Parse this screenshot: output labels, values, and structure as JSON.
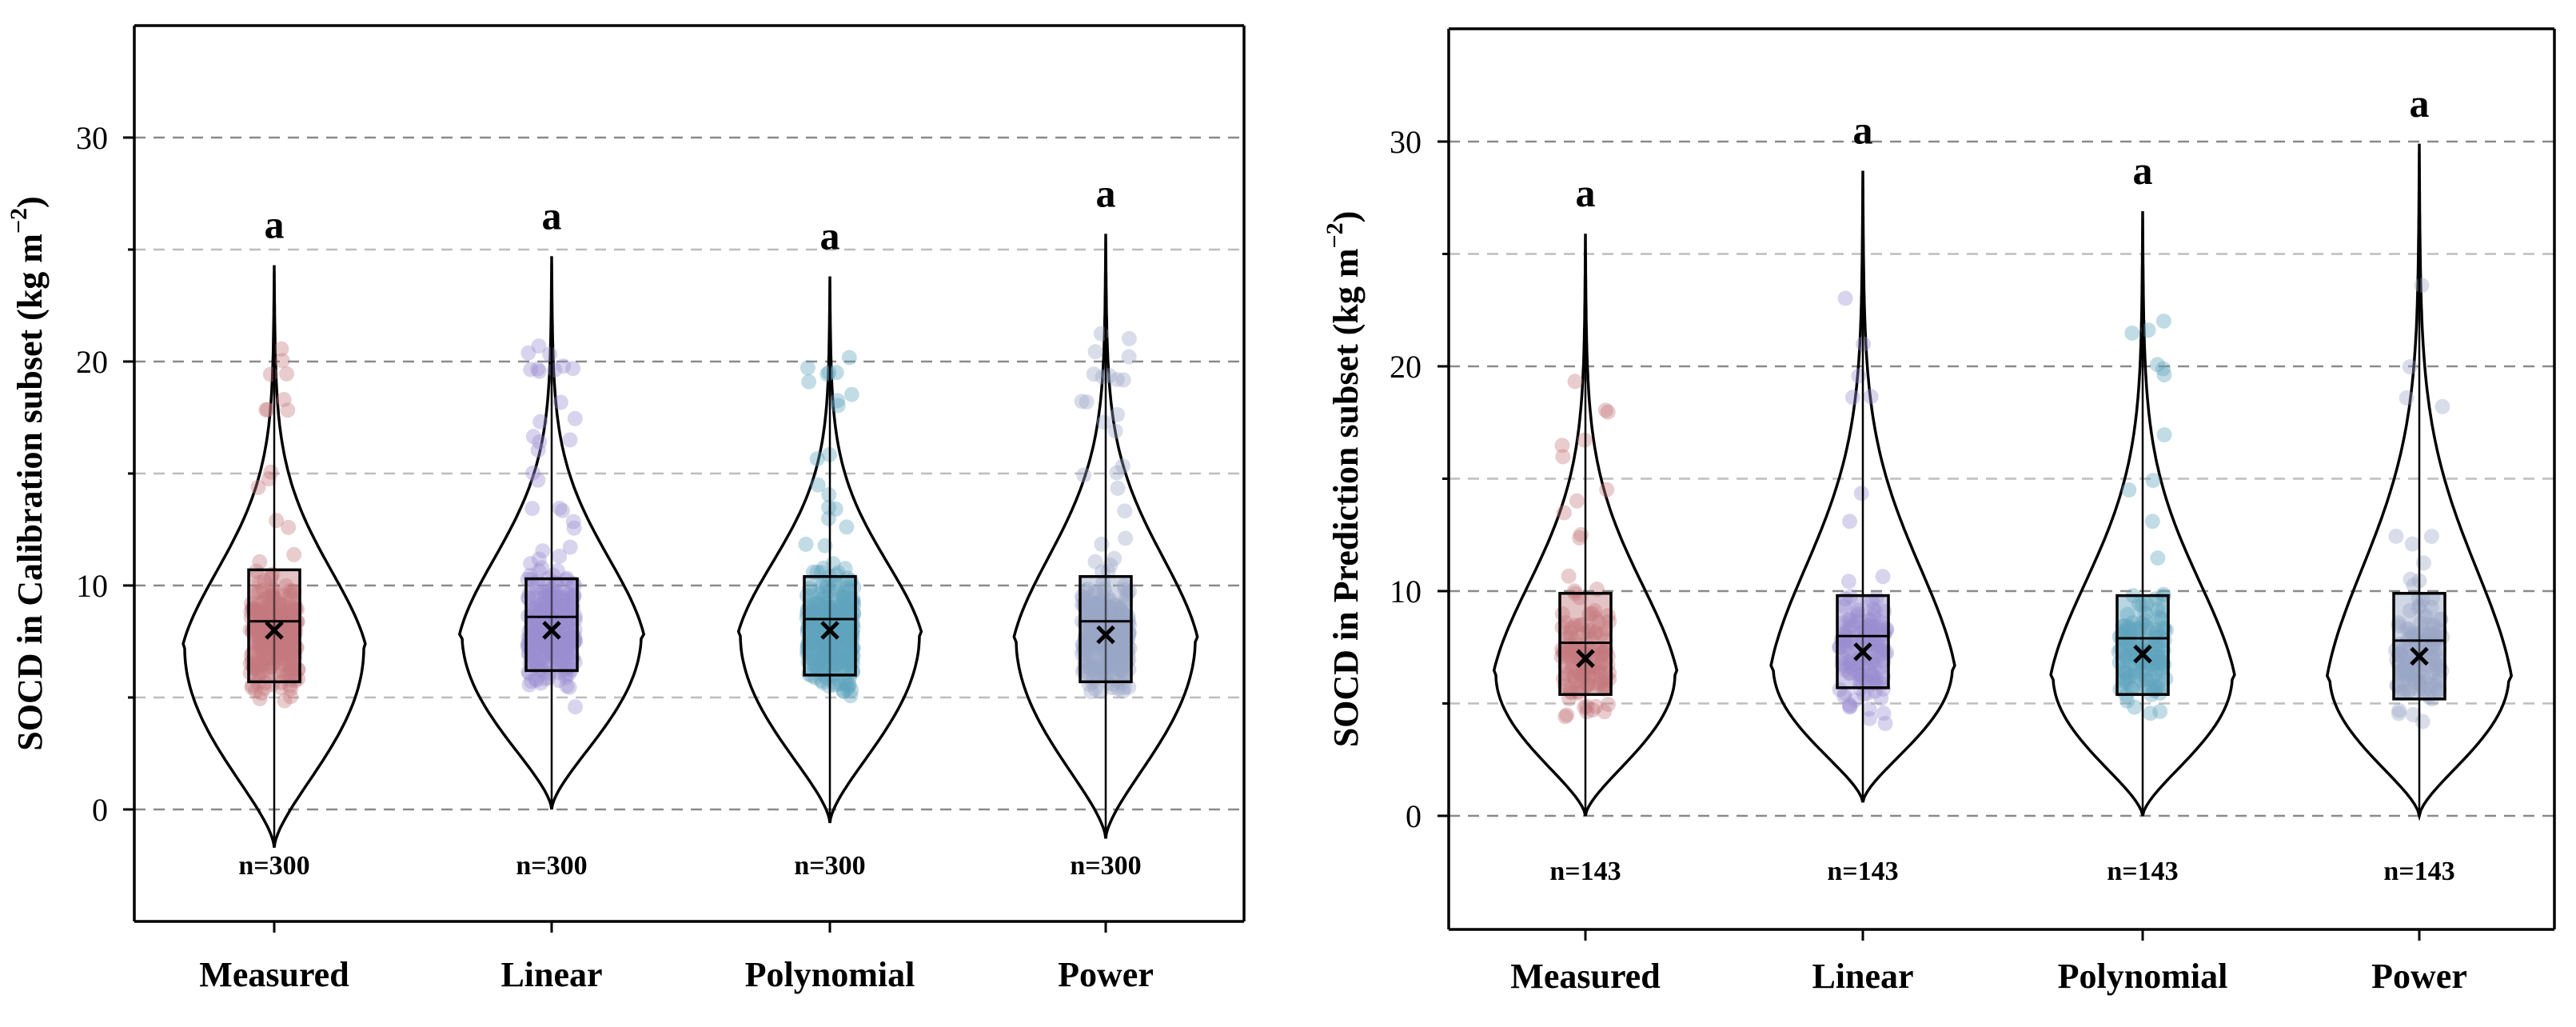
{
  "chart_data": [
    {
      "type": "violin",
      "ylabel_prefix": "SOCD in Calibration subset (kg m",
      "ylabel_sup": "−2",
      "ylabel_suffix": ")",
      "ylim": [
        -5,
        35
      ],
      "yticks": [
        0,
        10,
        20,
        30
      ],
      "ytick_labels": [
        "0",
        "10",
        "20",
        "30"
      ],
      "grid_major": [
        0,
        10,
        20,
        30
      ],
      "grid_minor": [
        5,
        15,
        25
      ],
      "categories": [
        "Measured",
        "Linear",
        "Polynomial",
        "Power"
      ],
      "n_labels": [
        "n=300",
        "n=300",
        "n=300",
        "n=300"
      ],
      "sig_labels": [
        "a",
        "a",
        "a",
        "a"
      ],
      "series": [
        {
          "name": "Measured",
          "color": "#c47a7e",
          "min": -1.7,
          "max": 24.3,
          "q1": 5.7,
          "median": 8.4,
          "q3": 10.7,
          "mean": 8.0,
          "peak": 7.2
        },
        {
          "name": "Linear",
          "color": "#9a8fd0",
          "min": 0.0,
          "max": 24.7,
          "q1": 6.2,
          "median": 8.6,
          "q3": 10.3,
          "mean": 8.0,
          "peak": 7.8
        },
        {
          "name": "Polynomial",
          "color": "#5fa3bd",
          "min": -0.6,
          "max": 23.8,
          "q1": 6.0,
          "median": 8.5,
          "q3": 10.4,
          "mean": 8.0,
          "peak": 7.8
        },
        {
          "name": "Power",
          "color": "#9aa6c6",
          "min": -1.3,
          "max": 25.7,
          "q1": 5.7,
          "median": 8.4,
          "q3": 10.4,
          "mean": 7.8,
          "peak": 7.6
        }
      ]
    },
    {
      "type": "violin",
      "ylabel_prefix": "SOCD in Prediction subset (kg m",
      "ylabel_sup": "−2",
      "ylabel_suffix": ")",
      "ylim": [
        -5,
        35
      ],
      "yticks": [
        0,
        10,
        20,
        30
      ],
      "ytick_labels": [
        "0",
        "10",
        "20",
        "30"
      ],
      "grid_major": [
        0,
        10,
        20,
        30
      ],
      "grid_minor": [
        5,
        15,
        25
      ],
      "categories": [
        "Measured",
        "Linear",
        "Polynomial",
        "Power"
      ],
      "n_labels": [
        "n=143",
        "n=143",
        "n=143",
        "n=143"
      ],
      "sig_labels": [
        "a",
        "a",
        "a",
        "a"
      ],
      "series": [
        {
          "name": "Measured",
          "color": "#c47a7e",
          "min": 0.0,
          "max": 25.9,
          "q1": 5.4,
          "median": 7.7,
          "q3": 9.9,
          "mean": 7.0,
          "peak": 6.3
        },
        {
          "name": "Linear",
          "color": "#9a8fd0",
          "min": 0.6,
          "max": 28.7,
          "q1": 5.7,
          "median": 8.0,
          "q3": 9.8,
          "mean": 7.3,
          "peak": 6.6
        },
        {
          "name": "Polynomial",
          "color": "#5fa3bd",
          "min": 0.0,
          "max": 26.9,
          "q1": 5.4,
          "median": 7.9,
          "q3": 9.8,
          "mean": 7.2,
          "peak": 6.2
        },
        {
          "name": "Power",
          "color": "#9aa6c6",
          "min": 0.0,
          "max": 29.9,
          "q1": 5.2,
          "median": 7.8,
          "q3": 9.9,
          "mean": 7.1,
          "peak": 6.2
        }
      ]
    }
  ]
}
